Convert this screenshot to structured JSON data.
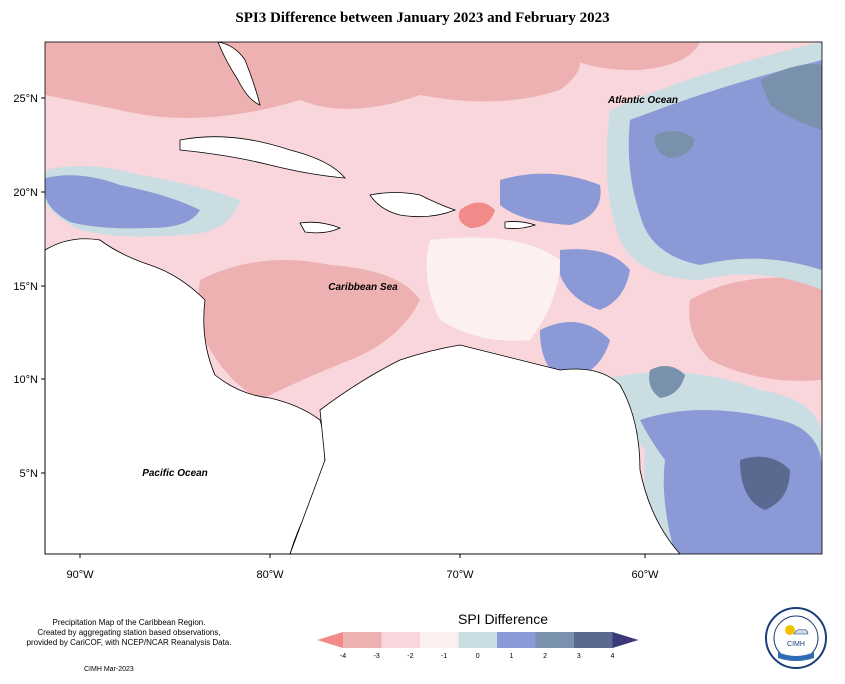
{
  "title": "SPI3 Difference between January 2023 and February 2023",
  "map": {
    "y_ticks": [
      {
        "label": "25°N"
      },
      {
        "label": "20°N"
      },
      {
        "label": "15°N"
      },
      {
        "label": "10°N"
      },
      {
        "label": "5°N"
      }
    ],
    "x_ticks": [
      {
        "label": "90°W"
      },
      {
        "label": "80°W"
      },
      {
        "label": "70°W"
      },
      {
        "label": "60°W"
      }
    ],
    "labels": {
      "atlantic": "Atlantic Ocean",
      "caribbean": "Caribbean Sea",
      "pacific": "Pacific Ocean"
    }
  },
  "legend": {
    "title": "SPI Difference",
    "ticks": [
      "-4",
      "-3",
      "-2",
      "-1",
      "0",
      "1",
      "2",
      "3",
      "4"
    ],
    "colors": [
      "#f28a8a",
      "#eeb1b1",
      "#f8d6dc",
      "#fdf0f0",
      "#c9dde2",
      "#8b9ad6",
      "#7a91ad",
      "#59698f",
      "#3d3a7a"
    ]
  },
  "footer": {
    "line1": "Precipitation Map of the Caribbean Region.",
    "line2": "Created by aggregating station based observations,",
    "line3": "provided by CariCOF, with NCEP/NCAR Reanalysis Data.",
    "credit": "CIMH Mar-2023"
  },
  "logo": {
    "text": "CIMH"
  },
  "colors": {
    "strong_neg": "#eeb1b1",
    "mild_neg": "#f8d6dc",
    "neutral": "#fdf0f0",
    "mild_pos": "#c9dde2",
    "pos": "#8b9ad6",
    "strong_pos": "#7a91ad"
  }
}
